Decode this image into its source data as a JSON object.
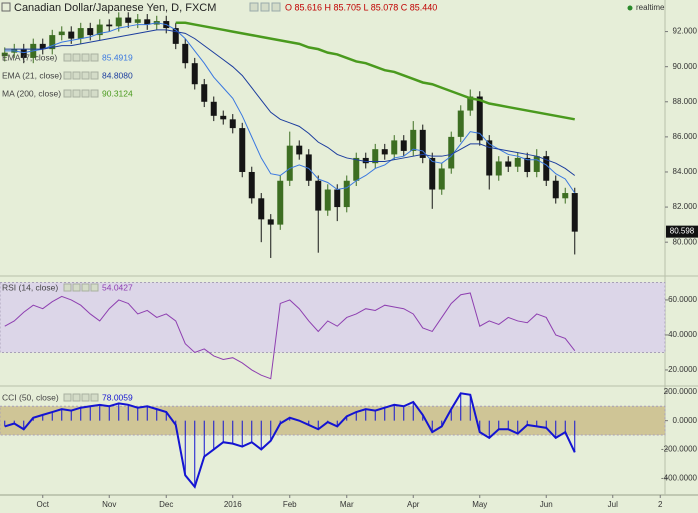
{
  "chart_data": [
    {
      "type": "candlestick",
      "title": "Canadian Dollar/Japanese Yen, D, FXCM",
      "subtitle": "O 85.616 H 85.705 L 85.078 C 85.440",
      "annotation": "realtime",
      "last_price": "80.598",
      "categories": [
        null,
        null,
        null,
        null,
        "Oct",
        null,
        null,
        null,
        null,
        null,
        null,
        "Nov",
        null,
        null,
        null,
        null,
        null,
        "Dec",
        null,
        null,
        null,
        null,
        null,
        null,
        "2016",
        null,
        null,
        null,
        null,
        null,
        "Feb",
        null,
        null,
        null,
        null,
        null,
        "Mar",
        null,
        null,
        null,
        null,
        null,
        null,
        "Apr",
        null,
        null,
        null,
        null,
        null,
        null,
        "May",
        null,
        null,
        null,
        null,
        null,
        null,
        "Jun",
        null,
        null,
        null,
        null,
        null,
        null,
        "Jul",
        null,
        null,
        null,
        null,
        "2"
      ],
      "open": [
        90.6,
        90.8,
        91.0,
        90.5,
        91.3,
        91.0,
        91.8,
        92.0,
        91.6,
        92.2,
        91.8,
        92.4,
        92.3,
        92.8,
        92.5,
        92.7,
        92.4,
        92.6,
        92.2,
        91.3,
        90.2,
        89.0,
        88.0,
        87.2,
        87.0,
        86.5,
        84.0,
        82.5,
        81.3,
        81.0,
        83.5,
        85.5,
        85.0,
        83.5,
        81.8,
        83.0,
        82.0,
        83.5,
        84.8,
        84.5,
        85.3,
        85.0,
        85.8,
        85.2,
        86.4,
        84.8,
        83.0,
        84.2,
        86.0,
        87.5,
        88.3,
        85.8,
        83.8,
        84.6,
        84.3,
        84.8,
        84.0,
        84.9,
        83.5,
        82.5,
        82.8,
        null,
        null,
        null,
        null,
        null,
        null,
        null,
        null,
        null
      ],
      "high": [
        91.1,
        91.3,
        91.3,
        91.6,
        91.6,
        92.1,
        92.3,
        92.3,
        92.5,
        92.5,
        92.7,
        92.7,
        93.1,
        93.1,
        93.0,
        93.0,
        92.9,
        92.9,
        92.5,
        91.6,
        90.5,
        89.3,
        88.3,
        87.5,
        87.3,
        86.8,
        84.3,
        82.8,
        81.6,
        83.8,
        86.3,
        85.8,
        85.3,
        83.8,
        83.3,
        83.3,
        83.8,
        85.1,
        85.1,
        85.6,
        85.6,
        86.1,
        86.1,
        86.9,
        86.7,
        85.1,
        84.5,
        86.3,
        87.8,
        88.7,
        88.6,
        86.1,
        84.9,
        84.9,
        85.1,
        85.1,
        85.3,
        85.2,
        83.8,
        83.1,
        83.1,
        null,
        null,
        null,
        null,
        null,
        null,
        null,
        null,
        null
      ],
      "low": [
        90.3,
        90.5,
        90.2,
        90.2,
        90.7,
        90.7,
        91.5,
        91.3,
        91.3,
        91.5,
        91.5,
        92.0,
        92.0,
        92.2,
        92.2,
        92.1,
        92.1,
        91.9,
        91.0,
        89.9,
        88.7,
        87.7,
        86.9,
        86.7,
        86.2,
        83.7,
        82.2,
        80.0,
        79.1,
        80.7,
        83.2,
        84.7,
        83.2,
        79.4,
        81.5,
        81.2,
        81.7,
        83.2,
        84.2,
        84.2,
        84.7,
        84.7,
        84.9,
        84.9,
        84.5,
        81.9,
        82.7,
        83.9,
        85.7,
        87.2,
        85.5,
        83.0,
        83.5,
        84.0,
        84.0,
        83.7,
        83.7,
        83.2,
        82.2,
        82.2,
        79.3,
        null,
        null,
        null,
        null,
        null,
        null,
        null,
        null,
        null
      ],
      "close": [
        90.8,
        91.0,
        90.5,
        91.3,
        91.0,
        91.8,
        92.0,
        91.6,
        92.2,
        91.8,
        92.4,
        92.3,
        92.8,
        92.5,
        92.7,
        92.4,
        92.6,
        92.2,
        91.3,
        90.2,
        89.0,
        88.0,
        87.2,
        87.0,
        86.5,
        84.0,
        82.5,
        81.3,
        81.0,
        83.5,
        85.5,
        85.0,
        83.5,
        81.8,
        83.0,
        82.0,
        83.5,
        84.8,
        84.5,
        85.3,
        85.0,
        85.8,
        85.2,
        86.4,
        84.8,
        83.0,
        84.2,
        86.0,
        87.5,
        88.3,
        85.8,
        83.8,
        84.6,
        84.3,
        84.8,
        84.0,
        84.9,
        83.5,
        82.5,
        82.8,
        80.6,
        null,
        null,
        null,
        null,
        null,
        null,
        null,
        null,
        null
      ],
      "up_color": "#3d6e22",
      "down_color": "#151515",
      "lines": [
        {
          "name": "EMA (7, close)",
          "last": "85.4919",
          "color": "#3a78e0",
          "width": 1,
          "values": [
            90.9,
            90.9,
            90.8,
            90.9,
            91.0,
            91.2,
            91.4,
            91.5,
            91.6,
            91.7,
            91.9,
            92.0,
            92.2,
            92.3,
            92.4,
            92.4,
            92.5,
            92.4,
            92.1,
            91.6,
            90.9,
            90.2,
            89.4,
            88.8,
            88.2,
            87.2,
            86.0,
            84.8,
            83.9,
            83.8,
            84.2,
            84.4,
            84.2,
            83.6,
            83.4,
            83.0,
            83.1,
            83.5,
            83.8,
            84.2,
            84.4,
            84.8,
            84.9,
            85.3,
            85.2,
            84.6,
            84.5,
            84.9,
            85.6,
            86.3,
            86.2,
            85.6,
            85.3,
            85.0,
            84.9,
            84.7,
            84.7,
            84.4,
            83.9,
            83.6,
            82.8,
            null,
            null,
            null,
            null,
            null,
            null,
            null,
            null,
            null
          ]
        },
        {
          "name": "EMA (21, close)",
          "last": "84.8080",
          "color": "#1c3d9e",
          "width": 1,
          "values": [
            91.0,
            91.0,
            91.0,
            91.0,
            91.0,
            91.1,
            91.2,
            91.2,
            91.3,
            91.4,
            91.5,
            91.6,
            91.7,
            91.8,
            91.9,
            92.0,
            92.1,
            92.1,
            92.0,
            91.9,
            91.6,
            91.2,
            90.8,
            90.4,
            90.0,
            89.5,
            88.8,
            88.1,
            87.4,
            87.0,
            86.8,
            86.6,
            86.2,
            85.7,
            85.4,
            85.0,
            84.8,
            84.7,
            84.6,
            84.6,
            84.6,
            84.7,
            84.8,
            84.9,
            85.0,
            84.9,
            84.9,
            85.0,
            85.3,
            85.6,
            85.6,
            85.4,
            85.3,
            85.2,
            85.1,
            85.0,
            84.9,
            84.7,
            84.5,
            84.2,
            83.8,
            null,
            null,
            null,
            null,
            null,
            null,
            null,
            null,
            null
          ]
        },
        {
          "name": "MA (200, close)",
          "last": "90.3124",
          "color": "#4a9a1e",
          "width": 2.5,
          "values": [
            null,
            null,
            null,
            null,
            null,
            null,
            null,
            null,
            null,
            null,
            null,
            null,
            null,
            null,
            null,
            null,
            null,
            null,
            92.5,
            92.5,
            92.4,
            92.3,
            92.2,
            92.1,
            92.0,
            91.9,
            91.8,
            91.7,
            91.6,
            91.5,
            91.4,
            91.3,
            91.1,
            91.0,
            90.8,
            90.7,
            90.5,
            90.3,
            90.2,
            90.0,
            89.8,
            89.7,
            89.5,
            89.3,
            89.1,
            89.0,
            88.8,
            88.6,
            88.4,
            88.2,
            88.1,
            87.9,
            87.8,
            87.7,
            87.6,
            87.5,
            87.4,
            87.3,
            87.2,
            87.1,
            87.0,
            null,
            null,
            null,
            null,
            null,
            null,
            null,
            null,
            null
          ]
        }
      ],
      "ylim": [
        78.3,
        93.8
      ],
      "yticks": [
        {
          "value": 80,
          "label": "80.000"
        },
        {
          "value": 82,
          "label": "82.000"
        },
        {
          "value": 84,
          "label": "84.000"
        },
        {
          "value": 86,
          "label": "86.000"
        },
        {
          "value": 88,
          "label": "88.000"
        },
        {
          "value": 90,
          "label": "90.000"
        },
        {
          "value": 92,
          "label": "92.000"
        }
      ]
    },
    {
      "type": "line",
      "band": [
        30,
        70
      ],
      "band_color": "#dcd6e8",
      "series": [
        {
          "name": "RSI (14, close)",
          "last": "54.0427",
          "color": "#8e3fb0",
          "width": 1,
          "values": [
            45,
            48,
            53,
            57,
            55,
            59,
            62,
            60,
            57,
            52,
            48,
            55,
            60,
            58,
            52,
            54,
            50,
            52,
            48,
            35,
            30,
            32,
            28,
            26,
            27,
            24,
            20,
            17,
            15,
            58,
            60,
            55,
            48,
            42,
            48,
            45,
            50,
            52,
            55,
            54,
            57,
            56,
            55,
            52,
            44,
            42,
            50,
            58,
            63,
            64,
            45,
            48,
            46,
            50,
            48,
            47,
            52,
            50,
            40,
            38,
            31,
            null,
            null,
            null,
            null,
            null,
            null,
            null,
            null,
            null
          ]
        }
      ],
      "ylim": [
        11.4,
        71.4
      ],
      "yticks": [
        {
          "value": 20,
          "label": "20.0000"
        },
        {
          "value": 40,
          "label": "40.0000"
        },
        {
          "value": 60,
          "label": "60.0000"
        }
      ]
    },
    {
      "type": "line",
      "band": [
        -100,
        100
      ],
      "band_color": "#cfc596",
      "histogram": true,
      "series": [
        {
          "name": "CCI (50, close)",
          "last": "78.0059",
          "color": "#1414d2",
          "width": 2,
          "values": [
            -40,
            -20,
            -60,
            20,
            40,
            60,
            80,
            70,
            90,
            100,
            110,
            100,
            120,
            110,
            90,
            100,
            80,
            60,
            -30,
            -380,
            -460,
            -250,
            -200,
            -150,
            -160,
            -180,
            -150,
            -200,
            -140,
            -20,
            20,
            0,
            -30,
            -60,
            -10,
            -40,
            30,
            60,
            80,
            70,
            90,
            110,
            100,
            130,
            40,
            -80,
            -40,
            80,
            190,
            180,
            -80,
            -120,
            -60,
            -60,
            -90,
            -30,
            -40,
            -50,
            -120,
            -80,
            -220,
            null,
            null,
            null,
            null,
            null,
            null,
            null,
            null,
            null
          ]
        }
      ],
      "ylim": [
        -517,
        227
      ],
      "yticks": [
        {
          "value": -400,
          "label": "-400.0000"
        },
        {
          "value": -200,
          "label": "-200.0000"
        },
        {
          "value": 0,
          "label": "0.0000"
        },
        {
          "value": 200,
          "label": "200.0000"
        }
      ]
    }
  ]
}
